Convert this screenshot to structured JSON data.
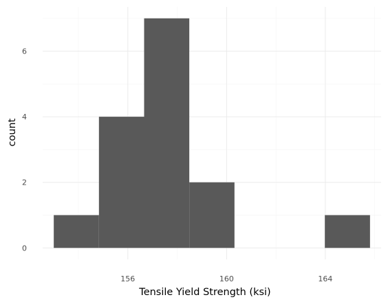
{
  "chart_data": {
    "type": "bar",
    "subtype": "histogram",
    "title": "",
    "xlabel": "Tensile Yield Strength (ksi)",
    "ylabel": "count",
    "bin_width": 1.83,
    "bins": [
      {
        "x0": 153.0,
        "x1": 154.83,
        "count": 1
      },
      {
        "x0": 154.83,
        "x1": 156.66,
        "count": 4
      },
      {
        "x0": 156.66,
        "x1": 158.49,
        "count": 7
      },
      {
        "x0": 158.49,
        "x1": 160.32,
        "count": 2
      },
      {
        "x0": 160.32,
        "x1": 162.15,
        "count": 0
      },
      {
        "x0": 162.15,
        "x1": 163.98,
        "count": 0
      },
      {
        "x0": 163.98,
        "x1": 165.81,
        "count": 1
      }
    ],
    "xlim": [
      152.55,
      166.26
    ],
    "ylim": [
      -0.35,
      7.35
    ],
    "x_ticks": [
      "156",
      "160",
      "164"
    ],
    "y_ticks": [
      "0",
      "2",
      "4",
      "6"
    ],
    "grid": true,
    "bar_color": "#595959",
    "grid_color": "#ebebeb"
  }
}
